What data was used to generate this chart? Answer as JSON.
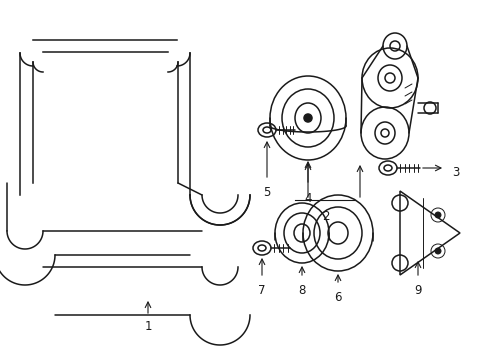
{
  "bg_color": "#ffffff",
  "line_color": "#1a1a1a",
  "lw": 1.1,
  "tlw": 0.7,
  "fs": 8.5,
  "figsize": [
    4.89,
    3.6
  ],
  "dpi": 100
}
